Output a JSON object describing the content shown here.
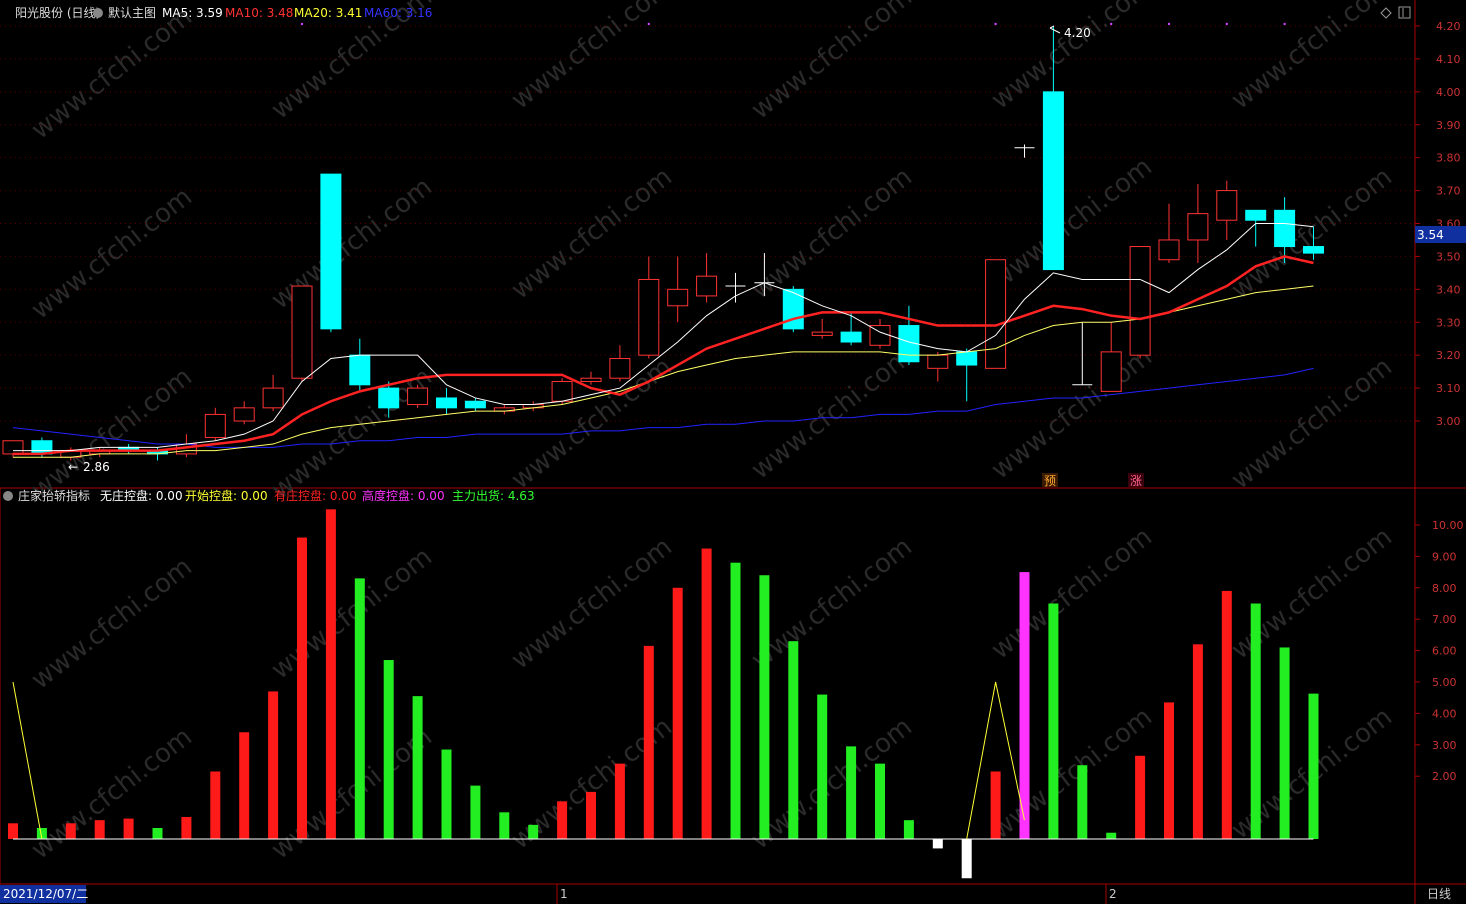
{
  "header": {
    "stock_label": "阳光股份 (日线)",
    "template_label": "默认主图",
    "ma5_label": "MA5: 3.59",
    "ma10_label": "MA10: 3.48",
    "ma20_label": "MA20: 3.41",
    "ma60_label": "MA60: 3.16"
  },
  "indicator_header": {
    "name": "庄家抬轿指标",
    "items": [
      {
        "label": "无庄控盘: 0.00",
        "color": "#ffffff"
      },
      {
        "label": "开始控盘: 0.00",
        "color": "#ffff33"
      },
      {
        "label": "有庄控盘: 0.00",
        "color": "#ff2222"
      },
      {
        "label": "高度控盘: 0.00",
        "color": "#ff33ff"
      },
      {
        "label": "主力出货: 4.63",
        "color": "#33ff33"
      }
    ]
  },
  "footer": {
    "date": "2021/12/07/二",
    "month1": "1",
    "month2": "2",
    "period": "日线"
  },
  "current_price": "3.54",
  "annotations": {
    "high": "4.20",
    "low": "2.86",
    "mark1": "预",
    "mark2": "涨"
  },
  "watermark": "www.cfchi.com",
  "colors": {
    "up": "#ff3333",
    "down": "#00ffff",
    "ma5": "#ffffff",
    "ma10": "#ff2222",
    "ma20": "#ffff66",
    "ma60": "#2222ff",
    "bar_red": "#ff1a1a",
    "bar_green": "#22ee22",
    "bar_white": "#ffffff",
    "bar_magenta": "#ff33ff"
  },
  "chart_data": [
    {
      "type": "candlestick",
      "y_ticks": [
        "4.20",
        "4.10",
        "4.00",
        "3.90",
        "3.80",
        "3.70",
        "3.60",
        "3.50",
        "3.40",
        "3.30",
        "3.20",
        "3.10",
        "3.00"
      ],
      "ylim": [
        2.8,
        4.25
      ],
      "candles": [
        {
          "o": 2.9,
          "c": 2.94,
          "h": 2.94,
          "l": 2.89
        },
        {
          "o": 2.94,
          "c": 2.9,
          "h": 2.95,
          "l": 2.89
        },
        {
          "o": 2.89,
          "c": 2.91,
          "h": 2.92,
          "l": 2.88
        },
        {
          "o": 2.9,
          "c": 2.91,
          "h": 2.92,
          "l": 2.89
        },
        {
          "o": 2.92,
          "c": 2.91,
          "h": 2.93,
          "l": 2.9
        },
        {
          "o": 2.91,
          "c": 2.9,
          "h": 2.92,
          "l": 2.88
        },
        {
          "o": 2.9,
          "c": 2.93,
          "h": 2.96,
          "l": 2.89
        },
        {
          "o": 2.95,
          "c": 3.02,
          "h": 3.04,
          "l": 2.94
        },
        {
          "o": 3.0,
          "c": 3.04,
          "h": 3.06,
          "l": 2.99
        },
        {
          "o": 3.04,
          "c": 3.1,
          "h": 3.14,
          "l": 3.03
        },
        {
          "o": 3.13,
          "c": 3.41,
          "h": 3.41,
          "l": 3.12
        },
        {
          "o": 3.75,
          "c": 3.28,
          "h": 3.75,
          "l": 3.27
        },
        {
          "o": 3.2,
          "c": 3.11,
          "h": 3.25,
          "l": 3.09
        },
        {
          "o": 3.1,
          "c": 3.04,
          "h": 3.12,
          "l": 3.01
        },
        {
          "o": 3.05,
          "c": 3.1,
          "h": 3.11,
          "l": 3.04
        },
        {
          "o": 3.07,
          "c": 3.04,
          "h": 3.1,
          "l": 3.02
        },
        {
          "o": 3.06,
          "c": 3.04,
          "h": 3.07,
          "l": 3.03
        },
        {
          "o": 3.03,
          "c": 3.04,
          "h": 3.05,
          "l": 3.02
        },
        {
          "o": 3.04,
          "c": 3.05,
          "h": 3.06,
          "l": 3.03
        },
        {
          "o": 3.06,
          "c": 3.12,
          "h": 3.13,
          "l": 3.05
        },
        {
          "o": 3.12,
          "c": 3.13,
          "h": 3.15,
          "l": 3.11
        },
        {
          "o": 3.13,
          "c": 3.19,
          "h": 3.23,
          "l": 3.12
        },
        {
          "o": 3.2,
          "c": 3.43,
          "h": 3.5,
          "l": 3.19
        },
        {
          "o": 3.35,
          "c": 3.4,
          "h": 3.5,
          "l": 3.3
        },
        {
          "o": 3.38,
          "c": 3.44,
          "h": 3.51,
          "l": 3.36
        },
        {
          "o": 3.41,
          "c": 3.41,
          "h": 3.45,
          "l": 3.36
        },
        {
          "o": 3.42,
          "c": 3.42,
          "h": 3.51,
          "l": 3.38
        },
        {
          "o": 3.4,
          "c": 3.28,
          "h": 3.41,
          "l": 3.27
        },
        {
          "o": 3.26,
          "c": 3.27,
          "h": 3.31,
          "l": 3.25
        },
        {
          "o": 3.27,
          "c": 3.24,
          "h": 3.33,
          "l": 3.23
        },
        {
          "o": 3.23,
          "c": 3.29,
          "h": 3.31,
          "l": 3.22
        },
        {
          "o": 3.29,
          "c": 3.18,
          "h": 3.35,
          "l": 3.17
        },
        {
          "o": 3.16,
          "c": 3.2,
          "h": 3.21,
          "l": 3.12
        },
        {
          "o": 3.21,
          "c": 3.17,
          "h": 3.22,
          "l": 3.06
        },
        {
          "o": 3.16,
          "c": 3.49,
          "h": 3.49,
          "l": 3.16
        },
        {
          "o": 3.83,
          "c": 3.83,
          "h": 3.84,
          "l": 3.8
        },
        {
          "o": 4.0,
          "c": 3.46,
          "h": 4.2,
          "l": 3.46
        },
        {
          "o": 3.11,
          "c": 3.11,
          "h": 3.3,
          "l": 3.11
        },
        {
          "o": 3.09,
          "c": 3.21,
          "h": 3.3,
          "l": 3.09
        },
        {
          "o": 3.2,
          "c": 3.53,
          "h": 3.53,
          "l": 3.19
        },
        {
          "o": 3.49,
          "c": 3.55,
          "h": 3.66,
          "l": 3.48
        },
        {
          "o": 3.55,
          "c": 3.63,
          "h": 3.72,
          "l": 3.48
        },
        {
          "o": 3.61,
          "c": 3.7,
          "h": 3.73,
          "l": 3.55
        },
        {
          "o": 3.64,
          "c": 3.61,
          "h": 3.64,
          "l": 3.53
        },
        {
          "o": 3.64,
          "c": 3.53,
          "h": 3.68,
          "l": 3.48
        },
        {
          "o": 3.53,
          "c": 3.51,
          "h": 3.59,
          "l": 3.49
        }
      ],
      "ma5": [
        2.91,
        2.91,
        2.91,
        2.92,
        2.92,
        2.92,
        2.93,
        2.94,
        2.96,
        3.0,
        3.12,
        3.19,
        3.2,
        3.2,
        3.2,
        3.11,
        3.07,
        3.05,
        3.05,
        3.06,
        3.08,
        3.1,
        3.17,
        3.24,
        3.32,
        3.38,
        3.42,
        3.39,
        3.35,
        3.32,
        3.27,
        3.24,
        3.22,
        3.21,
        3.26,
        3.37,
        3.45,
        3.43,
        3.43,
        3.43,
        3.39,
        3.46,
        3.52,
        3.6,
        3.6,
        3.59
      ],
      "ma10": [
        2.9,
        2.9,
        2.91,
        2.91,
        2.91,
        2.91,
        2.92,
        2.93,
        2.94,
        2.96,
        3.02,
        3.06,
        3.09,
        3.11,
        3.13,
        3.14,
        3.14,
        3.14,
        3.14,
        3.14,
        3.1,
        3.08,
        3.12,
        3.17,
        3.22,
        3.25,
        3.28,
        3.31,
        3.33,
        3.33,
        3.33,
        3.31,
        3.29,
        3.29,
        3.29,
        3.32,
        3.35,
        3.34,
        3.32,
        3.31,
        3.33,
        3.37,
        3.41,
        3.47,
        3.5,
        3.48
      ],
      "ma20": [
        2.89,
        2.89,
        2.89,
        2.9,
        2.9,
        2.9,
        2.91,
        2.91,
        2.92,
        2.93,
        2.96,
        2.98,
        2.99,
        3.0,
        3.01,
        3.02,
        3.03,
        3.03,
        3.04,
        3.05,
        3.07,
        3.09,
        3.12,
        3.15,
        3.17,
        3.19,
        3.2,
        3.21,
        3.21,
        3.21,
        3.21,
        3.2,
        3.2,
        3.21,
        3.22,
        3.26,
        3.29,
        3.3,
        3.3,
        3.31,
        3.33,
        3.35,
        3.37,
        3.39,
        3.4,
        3.41
      ],
      "ma60": [
        2.98,
        2.97,
        2.96,
        2.95,
        2.94,
        2.93,
        2.93,
        2.92,
        2.92,
        2.92,
        2.93,
        2.93,
        2.94,
        2.94,
        2.95,
        2.95,
        2.96,
        2.96,
        2.96,
        2.96,
        2.97,
        2.97,
        2.98,
        2.98,
        2.99,
        2.99,
        3.0,
        3.0,
        3.01,
        3.01,
        3.02,
        3.02,
        3.03,
        3.03,
        3.05,
        3.06,
        3.07,
        3.07,
        3.08,
        3.09,
        3.1,
        3.11,
        3.12,
        3.13,
        3.14,
        3.16
      ]
    },
    {
      "type": "bar",
      "y_ticks": [
        "10.00",
        "9.00",
        "8.00",
        "7.00",
        "6.00",
        "5.00",
        "4.00",
        "3.00",
        "2.00"
      ],
      "ylim": [
        -1.4,
        10.8
      ],
      "values": [
        0.5,
        0.35,
        0.5,
        0.6,
        0.65,
        0.35,
        0.7,
        2.15,
        3.4,
        4.7,
        9.6,
        10.5,
        8.3,
        5.7,
        4.55,
        2.85,
        1.7,
        0.85,
        0.45,
        1.2,
        1.5,
        2.4,
        6.15,
        8.0,
        9.25,
        8.8,
        8.4,
        6.3,
        4.6,
        2.95,
        2.4,
        0.6,
        -0.3,
        -1.25,
        2.15,
        8.5,
        7.5,
        2.35,
        0.2,
        2.65,
        4.35,
        6.2,
        7.9,
        7.5,
        6.1,
        4.63
      ],
      "bar_types": [
        "r",
        "g",
        "r",
        "r",
        "r",
        "g",
        "r",
        "r",
        "r",
        "r",
        "r",
        "r",
        "g",
        "g",
        "g",
        "g",
        "g",
        "g",
        "g",
        "r",
        "r",
        "r",
        "r",
        "r",
        "r",
        "g",
        "g",
        "g",
        "g",
        "g",
        "g",
        "g",
        "w",
        "w",
        "r",
        "m",
        "g",
        "g",
        "g",
        "r",
        "r",
        "r",
        "r",
        "g",
        "g",
        "g"
      ],
      "yellow_line": [
        5.0,
        0,
        null,
        null,
        null,
        null,
        null,
        null,
        null,
        null,
        null,
        null,
        null,
        null,
        null,
        null,
        null,
        null,
        null,
        null,
        null,
        null,
        null,
        null,
        null,
        null,
        null,
        null,
        null,
        null,
        null,
        null,
        null,
        0,
        5.0,
        0.6
      ]
    }
  ]
}
